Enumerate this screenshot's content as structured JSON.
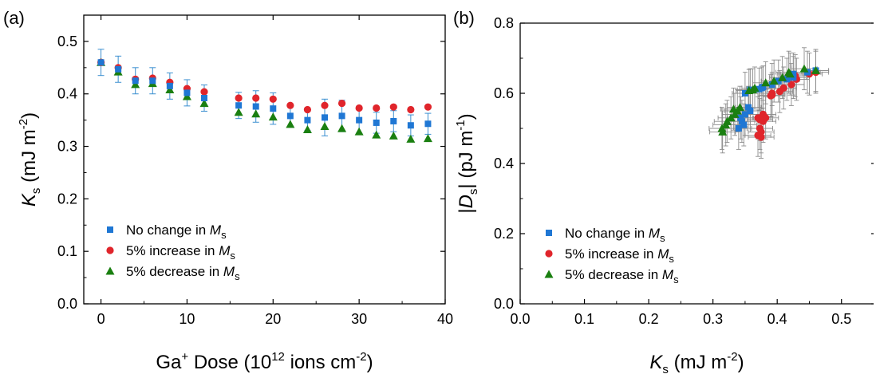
{
  "colors": {
    "no_change": "#1f77d4",
    "increase": "#e0252b",
    "decrease": "#1a7f10",
    "errorbar_a": "#3a8fd0",
    "errorbar_b": "#8c8c8c"
  },
  "chart_data": [
    {
      "panel_label": "(a)",
      "type": "scatter",
      "xlabel": {
        "pre": "Ga",
        "sup": "+",
        "mid": " Dose (10",
        "sup2": "12",
        "post": " ions cm",
        "sup3": "-2",
        "end": ")"
      },
      "ylabel": {
        "main": "K",
        "sub": "s",
        "post": " (mJ m",
        "sup": "-2",
        "end": ")"
      },
      "xlim": [
        -2,
        40
      ],
      "ylim": [
        0.0,
        0.55
      ],
      "xticks": [
        "0",
        "10",
        "20",
        "30",
        "40"
      ],
      "yticks": [
        "0.0",
        "0.1",
        "0.2",
        "0.3",
        "0.4",
        "0.5"
      ],
      "legend_position": "lower-left",
      "legend": [
        {
          "pre": "No change in ",
          "m": "M",
          "sub": "s",
          "marker": "square",
          "color": "#1f77d4"
        },
        {
          "pre": "5% increase in ",
          "m": "M",
          "sub": "s",
          "marker": "circle",
          "color": "#e0252b"
        },
        {
          "pre": "5% decrease in ",
          "m": "M",
          "sub": "s",
          "marker": "triangle",
          "color": "#1a7f10"
        }
      ],
      "series": [
        {
          "name": "No change in Ms",
          "marker": "square",
          "color": "#1f77d4",
          "x": [
            0,
            2,
            4,
            6,
            8,
            10,
            12,
            16,
            18,
            20,
            22,
            24,
            26,
            28,
            30,
            32,
            34,
            36,
            38
          ],
          "y": [
            0.46,
            0.447,
            0.425,
            0.425,
            0.415,
            0.402,
            0.392,
            0.378,
            0.376,
            0.372,
            0.358,
            0.35,
            0.355,
            0.358,
            0.35,
            0.345,
            0.348,
            0.34,
            0.343
          ],
          "err": [
            0.025,
            0.025,
            0.025,
            0.025,
            0.025,
            0.025,
            0.025,
            0.025,
            0.03,
            0.03,
            0.02,
            0.02,
            0.035,
            0.03,
            0.025,
            0.02,
            0.02,
            0.02,
            0.02
          ]
        },
        {
          "name": "5% increase in Ms",
          "marker": "circle",
          "color": "#e0252b",
          "x": [
            0,
            2,
            4,
            6,
            8,
            10,
            12,
            16,
            18,
            20,
            22,
            24,
            26,
            28,
            30,
            32,
            34,
            36,
            38
          ],
          "y": [
            0.46,
            0.45,
            0.428,
            0.43,
            0.422,
            0.41,
            0.404,
            0.392,
            0.392,
            0.39,
            0.378,
            0.37,
            0.378,
            0.382,
            0.373,
            0.373,
            0.375,
            0.37,
            0.375
          ]
        },
        {
          "name": "5% decrease in Ms",
          "marker": "triangle",
          "color": "#1a7f10",
          "x": [
            0,
            2,
            4,
            6,
            8,
            10,
            12,
            16,
            18,
            20,
            22,
            24,
            26,
            28,
            30,
            32,
            34,
            36,
            38
          ],
          "y": [
            0.46,
            0.442,
            0.418,
            0.42,
            0.408,
            0.395,
            0.382,
            0.365,
            0.362,
            0.356,
            0.342,
            0.332,
            0.338,
            0.334,
            0.328,
            0.322,
            0.32,
            0.314,
            0.315
          ]
        }
      ]
    },
    {
      "panel_label": "(b)",
      "type": "scatter",
      "xlabel": {
        "main": "K",
        "sub": "s",
        "post": " (mJ m",
        "sup": "-2",
        "end": ")"
      },
      "ylabel": {
        "pre": "|",
        "main": "D",
        "sub": "s",
        "post": "| (pJ m",
        "sup": "-1",
        "end": ")"
      },
      "xlim": [
        0.0,
        0.55
      ],
      "ylim": [
        0.0,
        0.8
      ],
      "xticks": [
        "0.0",
        "0.1",
        "0.2",
        "0.3",
        "0.4",
        "0.5"
      ],
      "yticks": [
        "0.0",
        "0.2",
        "0.4",
        "0.6",
        "0.8"
      ],
      "legend_position": "lower-left",
      "legend": [
        {
          "pre": "No change in ",
          "m": "M",
          "sub": "s",
          "marker": "square",
          "color": "#1f77d4"
        },
        {
          "pre": "5% increase in ",
          "m": "M",
          "sub": "s",
          "marker": "circle",
          "color": "#e0252b"
        },
        {
          "pre": "5% decrease in ",
          "m": "M",
          "sub": "s",
          "marker": "triangle",
          "color": "#1a7f10"
        }
      ],
      "series": [
        {
          "name": "No change in Ms",
          "marker": "square",
          "color": "#1f77d4",
          "x": [
            0.46,
            0.447,
            0.425,
            0.425,
            0.415,
            0.402,
            0.392,
            0.378,
            0.376,
            0.372,
            0.358,
            0.35,
            0.355,
            0.358,
            0.35,
            0.345,
            0.348,
            0.34,
            0.343
          ],
          "y": [
            0.665,
            0.66,
            0.655,
            0.645,
            0.64,
            0.635,
            0.625,
            0.618,
            0.615,
            0.612,
            0.61,
            0.6,
            0.56,
            0.55,
            0.54,
            0.52,
            0.51,
            0.5,
            0.53
          ],
          "xerr": 0.02,
          "yerr": 0.06
        },
        {
          "name": "5% increase in Ms",
          "marker": "circle",
          "color": "#e0252b",
          "x": [
            0.46,
            0.45,
            0.428,
            0.43,
            0.422,
            0.41,
            0.404,
            0.392,
            0.392,
            0.39,
            0.378,
            0.37,
            0.378,
            0.382,
            0.373,
            0.373,
            0.375,
            0.37,
            0.375
          ],
          "y": [
            0.66,
            0.655,
            0.65,
            0.64,
            0.625,
            0.615,
            0.605,
            0.6,
            0.595,
            0.593,
            0.54,
            0.53,
            0.52,
            0.53,
            0.525,
            0.5,
            0.49,
            0.48,
            0.475
          ]
        },
        {
          "name": "5% decrease in Ms",
          "marker": "triangle",
          "color": "#1a7f10",
          "x": [
            0.46,
            0.442,
            0.418,
            0.42,
            0.408,
            0.395,
            0.382,
            0.365,
            0.362,
            0.356,
            0.342,
            0.332,
            0.338,
            0.334,
            0.328,
            0.322,
            0.32,
            0.314,
            0.315
          ],
          "y": [
            0.665,
            0.67,
            0.66,
            0.655,
            0.645,
            0.635,
            0.63,
            0.615,
            0.61,
            0.608,
            0.56,
            0.555,
            0.55,
            0.54,
            0.53,
            0.52,
            0.51,
            0.5,
            0.49
          ]
        }
      ]
    }
  ]
}
